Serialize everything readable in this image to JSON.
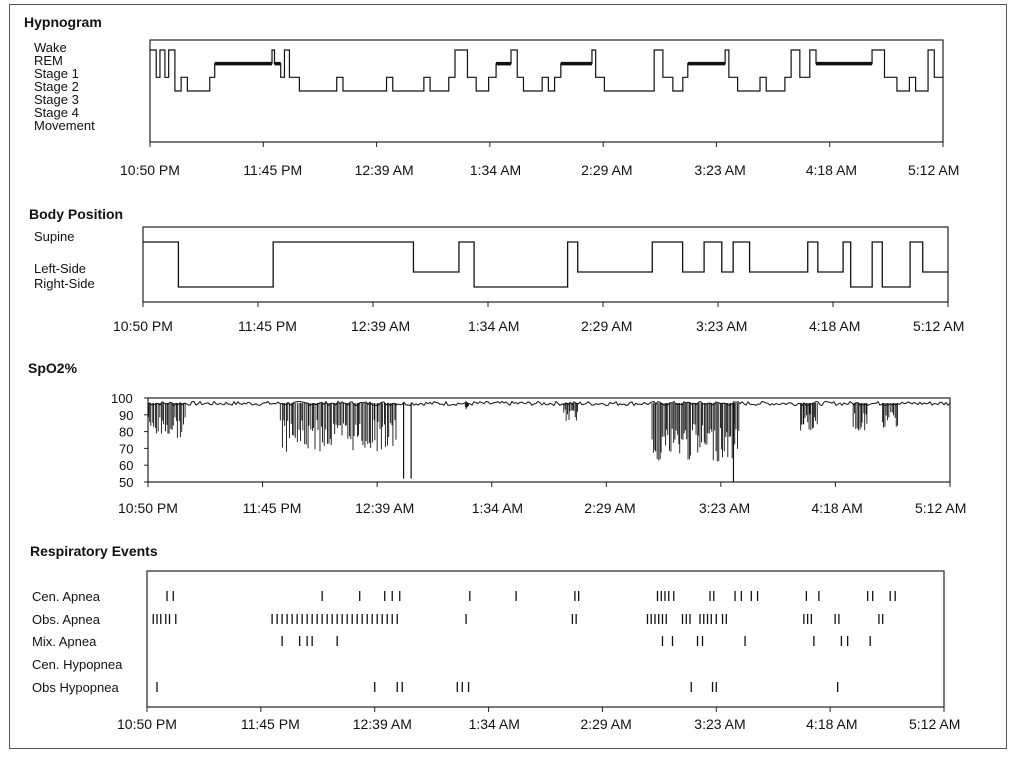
{
  "chart_data": [
    {
      "type": "line",
      "title": "Hypnogram",
      "y_categories": [
        "Wake",
        "REM",
        "Stage 1",
        "Stage 2",
        "Stage 3",
        "Stage 4",
        "Movement"
      ],
      "x_tick_labels": [
        "10:50 PM",
        "11:45 PM",
        "12:39 AM",
        "1:34 AM",
        "2:29 AM",
        "3:23 AM",
        "4:18 AM",
        "5:12 AM"
      ],
      "x_range_hours": [
        0,
        6.37
      ],
      "series": [
        {
          "type": "step",
          "points": [
            [
              0.0,
              "Wake"
            ],
            [
              0.05,
              "Stage 1"
            ],
            [
              0.08,
              "Wake"
            ],
            [
              0.12,
              "Stage 1"
            ],
            [
              0.15,
              "Wake"
            ],
            [
              0.2,
              "Stage 2"
            ],
            [
              0.25,
              "Stage 1"
            ],
            [
              0.3,
              "Stage 2"
            ],
            [
              0.4,
              "Stage 2"
            ],
            [
              0.48,
              "Stage 1"
            ],
            [
              0.52,
              "REM"
            ],
            [
              0.98,
              "Wake"
            ],
            [
              1.0,
              "REM"
            ],
            [
              1.05,
              "Stage 1"
            ],
            [
              1.08,
              "Wake"
            ],
            [
              1.12,
              "Stage 1"
            ],
            [
              1.2,
              "Stage 2"
            ],
            [
              1.5,
              "Stage 1"
            ],
            [
              1.55,
              "Stage 2"
            ],
            [
              1.9,
              "Stage 1"
            ],
            [
              1.95,
              "Stage 2"
            ],
            [
              2.2,
              "Stage 1"
            ],
            [
              2.25,
              "Stage 2"
            ],
            [
              2.4,
              "Stage 1"
            ],
            [
              2.45,
              "Wake"
            ],
            [
              2.55,
              "Stage 1"
            ],
            [
              2.62,
              "Stage 2"
            ],
            [
              2.72,
              "Stage 1"
            ],
            [
              2.78,
              "REM"
            ],
            [
              2.9,
              "Wake"
            ],
            [
              2.95,
              "Stage 1"
            ],
            [
              3.0,
              "Stage 2"
            ],
            [
              3.15,
              "Stage 1"
            ],
            [
              3.2,
              "Stage 2"
            ],
            [
              3.25,
              "Stage 1"
            ],
            [
              3.3,
              "REM"
            ],
            [
              3.55,
              "Wake"
            ],
            [
              3.58,
              "Stage 1"
            ],
            [
              3.65,
              "Stage 2"
            ],
            [
              4.0,
              "Stage 2"
            ],
            [
              4.05,
              "Wake"
            ],
            [
              4.12,
              "Stage 1"
            ],
            [
              4.2,
              "Stage 2"
            ],
            [
              4.28,
              "Stage 1"
            ],
            [
              4.32,
              "REM"
            ],
            [
              4.62,
              "Wake"
            ],
            [
              4.65,
              "Stage 1"
            ],
            [
              4.72,
              "Stage 2"
            ],
            [
              4.9,
              "Stage 1"
            ],
            [
              4.95,
              "Stage 2"
            ],
            [
              5.1,
              "Stage 1"
            ],
            [
              5.15,
              "Wake"
            ],
            [
              5.22,
              "Stage 1"
            ],
            [
              5.3,
              "Wake"
            ],
            [
              5.35,
              "REM"
            ],
            [
              5.8,
              "Wake"
            ],
            [
              5.9,
              "Stage 1"
            ],
            [
              6.0,
              "Stage 2"
            ],
            [
              6.1,
              "Stage 1"
            ],
            [
              6.15,
              "Stage 2"
            ],
            [
              6.25,
              "Wake"
            ],
            [
              6.3,
              "Stage 1"
            ],
            [
              6.37,
              "Stage 1"
            ]
          ]
        }
      ]
    },
    {
      "type": "line",
      "title": "Body Position",
      "y_categories": [
        "Supine",
        "Left-Side",
        "Right-Side"
      ],
      "x_tick_labels": [
        "10:50 PM",
        "11:45 PM",
        "12:39 AM",
        "1:34 AM",
        "2:29 AM",
        "3:23 AM",
        "4:18 AM",
        "5:12 AM"
      ],
      "x_range_hours": [
        0,
        6.37
      ],
      "series": [
        {
          "type": "step",
          "points": [
            [
              0.0,
              "Supine"
            ],
            [
              0.28,
              "Right-Side"
            ],
            [
              1.03,
              "Supine"
            ],
            [
              2.14,
              "Left-Side"
            ],
            [
              2.5,
              "Supine"
            ],
            [
              2.62,
              "Right-Side"
            ],
            [
              3.36,
              "Supine"
            ],
            [
              3.44,
              "Left-Side"
            ],
            [
              4.03,
              "Supine"
            ],
            [
              4.27,
              "Left-Side"
            ],
            [
              4.44,
              "Supine"
            ],
            [
              4.58,
              "Left-Side"
            ],
            [
              4.67,
              "Supine"
            ],
            [
              4.8,
              "Left-Side"
            ],
            [
              5.26,
              "Supine"
            ],
            [
              5.34,
              "Left-Side"
            ],
            [
              5.54,
              "Supine"
            ],
            [
              5.6,
              "Right-Side"
            ],
            [
              5.77,
              "Supine"
            ],
            [
              5.85,
              "Right-Side"
            ],
            [
              6.07,
              "Supine"
            ],
            [
              6.17,
              "Left-Side"
            ],
            [
              6.37,
              "Left-Side"
            ]
          ]
        }
      ]
    },
    {
      "type": "line",
      "title": "SpO2%",
      "y_ticks": [
        100,
        90,
        80,
        70,
        60,
        50
      ],
      "ylim": [
        50,
        100
      ],
      "x_tick_labels": [
        "10:50 PM",
        "11:45 PM",
        "12:39 AM",
        "1:34 AM",
        "2:29 AM",
        "3:23 AM",
        "4:18 AM",
        "5:12 AM"
      ],
      "x_range_hours": [
        0,
        6.37
      ],
      "baseline": 97,
      "desaturation_episodes": [
        {
          "start": 0.0,
          "end": 0.3,
          "min": 76,
          "density": 9
        },
        {
          "start": 1.05,
          "end": 1.98,
          "min": 68,
          "density": 26
        },
        {
          "start": 2.52,
          "end": 2.55,
          "min": 93,
          "density": 2
        },
        {
          "start": 3.3,
          "end": 3.42,
          "min": 86,
          "density": 4
        },
        {
          "start": 4.0,
          "end": 4.7,
          "min": 62,
          "density": 22
        },
        {
          "start": 5.18,
          "end": 5.32,
          "min": 80,
          "density": 5
        },
        {
          "start": 5.6,
          "end": 5.72,
          "min": 80,
          "density": 4
        },
        {
          "start": 5.83,
          "end": 5.96,
          "min": 82,
          "density": 4
        }
      ],
      "artifact_drops": [
        {
          "at": 2.03,
          "min": 52
        },
        {
          "at": 2.09,
          "min": 52
        },
        {
          "at": 4.65,
          "min": 50
        }
      ]
    },
    {
      "type": "scatter",
      "title": "Respiratory Events",
      "categories": [
        "Cen. Apnea",
        "Obs. Apnea",
        "Mix. Apnea",
        "Cen. Hypopnea",
        "Obs Hypopnea"
      ],
      "x_tick_labels": [
        "10:50 PM",
        "11:45 PM",
        "12:39 AM",
        "1:34 AM",
        "2:29 AM",
        "3:23 AM",
        "4:18 AM",
        "5:12 AM"
      ],
      "x_range_hours": [
        0,
        6.37
      ],
      "series": [
        {
          "name": "Cen. Apnea",
          "times": [
            0.16,
            0.21,
            1.4,
            1.7,
            1.9,
            1.96,
            2.02,
            2.58,
            2.95,
            3.42,
            3.45,
            4.08,
            4.11,
            4.14,
            4.17,
            4.21,
            4.5,
            4.53,
            4.7,
            4.75,
            4.83,
            4.88,
            5.27,
            5.37,
            5.76,
            5.8,
            5.94,
            5.98
          ]
        },
        {
          "name": "Obs. Apnea",
          "times": [
            0.05,
            0.08,
            0.11,
            0.15,
            0.18,
            0.23,
            1.0,
            1.04,
            1.08,
            1.12,
            1.16,
            1.2,
            1.24,
            1.28,
            1.32,
            1.36,
            1.4,
            1.44,
            1.48,
            1.52,
            1.56,
            1.6,
            1.64,
            1.68,
            1.72,
            1.76,
            1.8,
            1.84,
            1.88,
            1.92,
            1.96,
            2.0,
            2.55,
            3.4,
            3.43,
            4.0,
            4.03,
            4.06,
            4.09,
            4.12,
            4.15,
            4.28,
            4.31,
            4.34,
            4.42,
            4.45,
            4.48,
            4.51,
            4.55,
            4.6,
            4.63,
            5.25,
            5.28,
            5.31,
            5.5,
            5.53,
            5.85,
            5.88
          ]
        },
        {
          "name": "Mix. Apnea",
          "times": [
            1.08,
            1.22,
            1.28,
            1.32,
            1.52,
            4.12,
            4.2,
            4.4,
            4.44,
            4.78,
            5.33,
            5.55,
            5.6,
            5.78
          ]
        },
        {
          "name": "Cen. Hypopnea",
          "times": []
        },
        {
          "name": "Obs Hypopnea",
          "times": [
            0.08,
            1.82,
            2.0,
            2.04,
            2.48,
            2.52,
            2.57,
            4.35,
            4.52,
            4.55,
            5.52
          ]
        }
      ]
    }
  ]
}
